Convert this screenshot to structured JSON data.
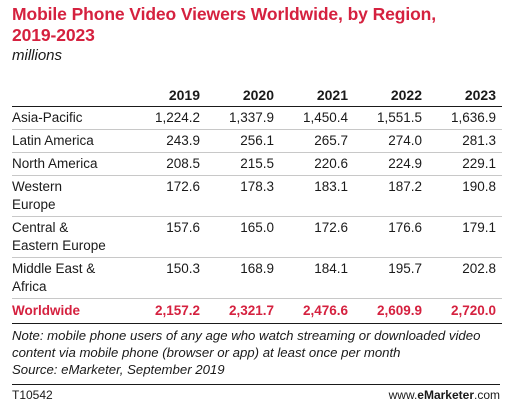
{
  "header": {
    "title_line1": "Mobile Phone Video Viewers Worldwide, by Region,",
    "title_line2": "2019-2023",
    "subtitle": "millions"
  },
  "chart_data": {
    "type": "table",
    "title": "Mobile Phone Video Viewers Worldwide, by Region, 2019-2023",
    "subtitle": "millions",
    "columns": [
      "",
      "2019",
      "2020",
      "2021",
      "2022",
      "2023"
    ],
    "rows": [
      {
        "label": "Asia-Pacific",
        "values": [
          "1,224.2",
          "1,337.9",
          "1,450.4",
          "1,551.5",
          "1,636.9"
        ]
      },
      {
        "label": "Latin America",
        "values": [
          "243.9",
          "256.1",
          "265.7",
          "274.0",
          "281.3"
        ]
      },
      {
        "label": "North America",
        "values": [
          "208.5",
          "215.5",
          "220.6",
          "224.9",
          "229.1"
        ]
      },
      {
        "label": "Western Europe",
        "values": [
          "172.6",
          "178.3",
          "183.1",
          "187.2",
          "190.8"
        ]
      },
      {
        "label": "Central & Eastern Europe",
        "values": [
          "157.6",
          "165.0",
          "172.6",
          "176.6",
          "179.1"
        ]
      },
      {
        "label": "Middle East & Africa",
        "values": [
          "150.3",
          "168.9",
          "184.1",
          "195.7",
          "202.8"
        ]
      }
    ],
    "total": {
      "label": "Worldwide",
      "values": [
        "2,157.2",
        "2,321.7",
        "2,476.6",
        "2,609.9",
        "2,720.0"
      ]
    }
  },
  "table_display": {
    "region_lines": [
      [
        "Asia-Pacific"
      ],
      [
        "Latin America"
      ],
      [
        "North America"
      ],
      [
        "Western",
        "Europe"
      ],
      [
        "Central &",
        "Eastern Europe"
      ],
      [
        "Middle East &",
        "Africa"
      ]
    ]
  },
  "notes": {
    "note": "Note: mobile phone users of any age who watch streaming or downloaded video content via mobile phone (browser or app) at least once per month",
    "source": "Source: eMarketer, September 2019"
  },
  "footer": {
    "code": "T10542",
    "site_prefix": "www.",
    "site_brand": "eMarketer",
    "site_suffix": ".com"
  },
  "colors": {
    "accent": "#d5213f",
    "text": "#1a1a1a",
    "rule": "#c8c8c8"
  }
}
